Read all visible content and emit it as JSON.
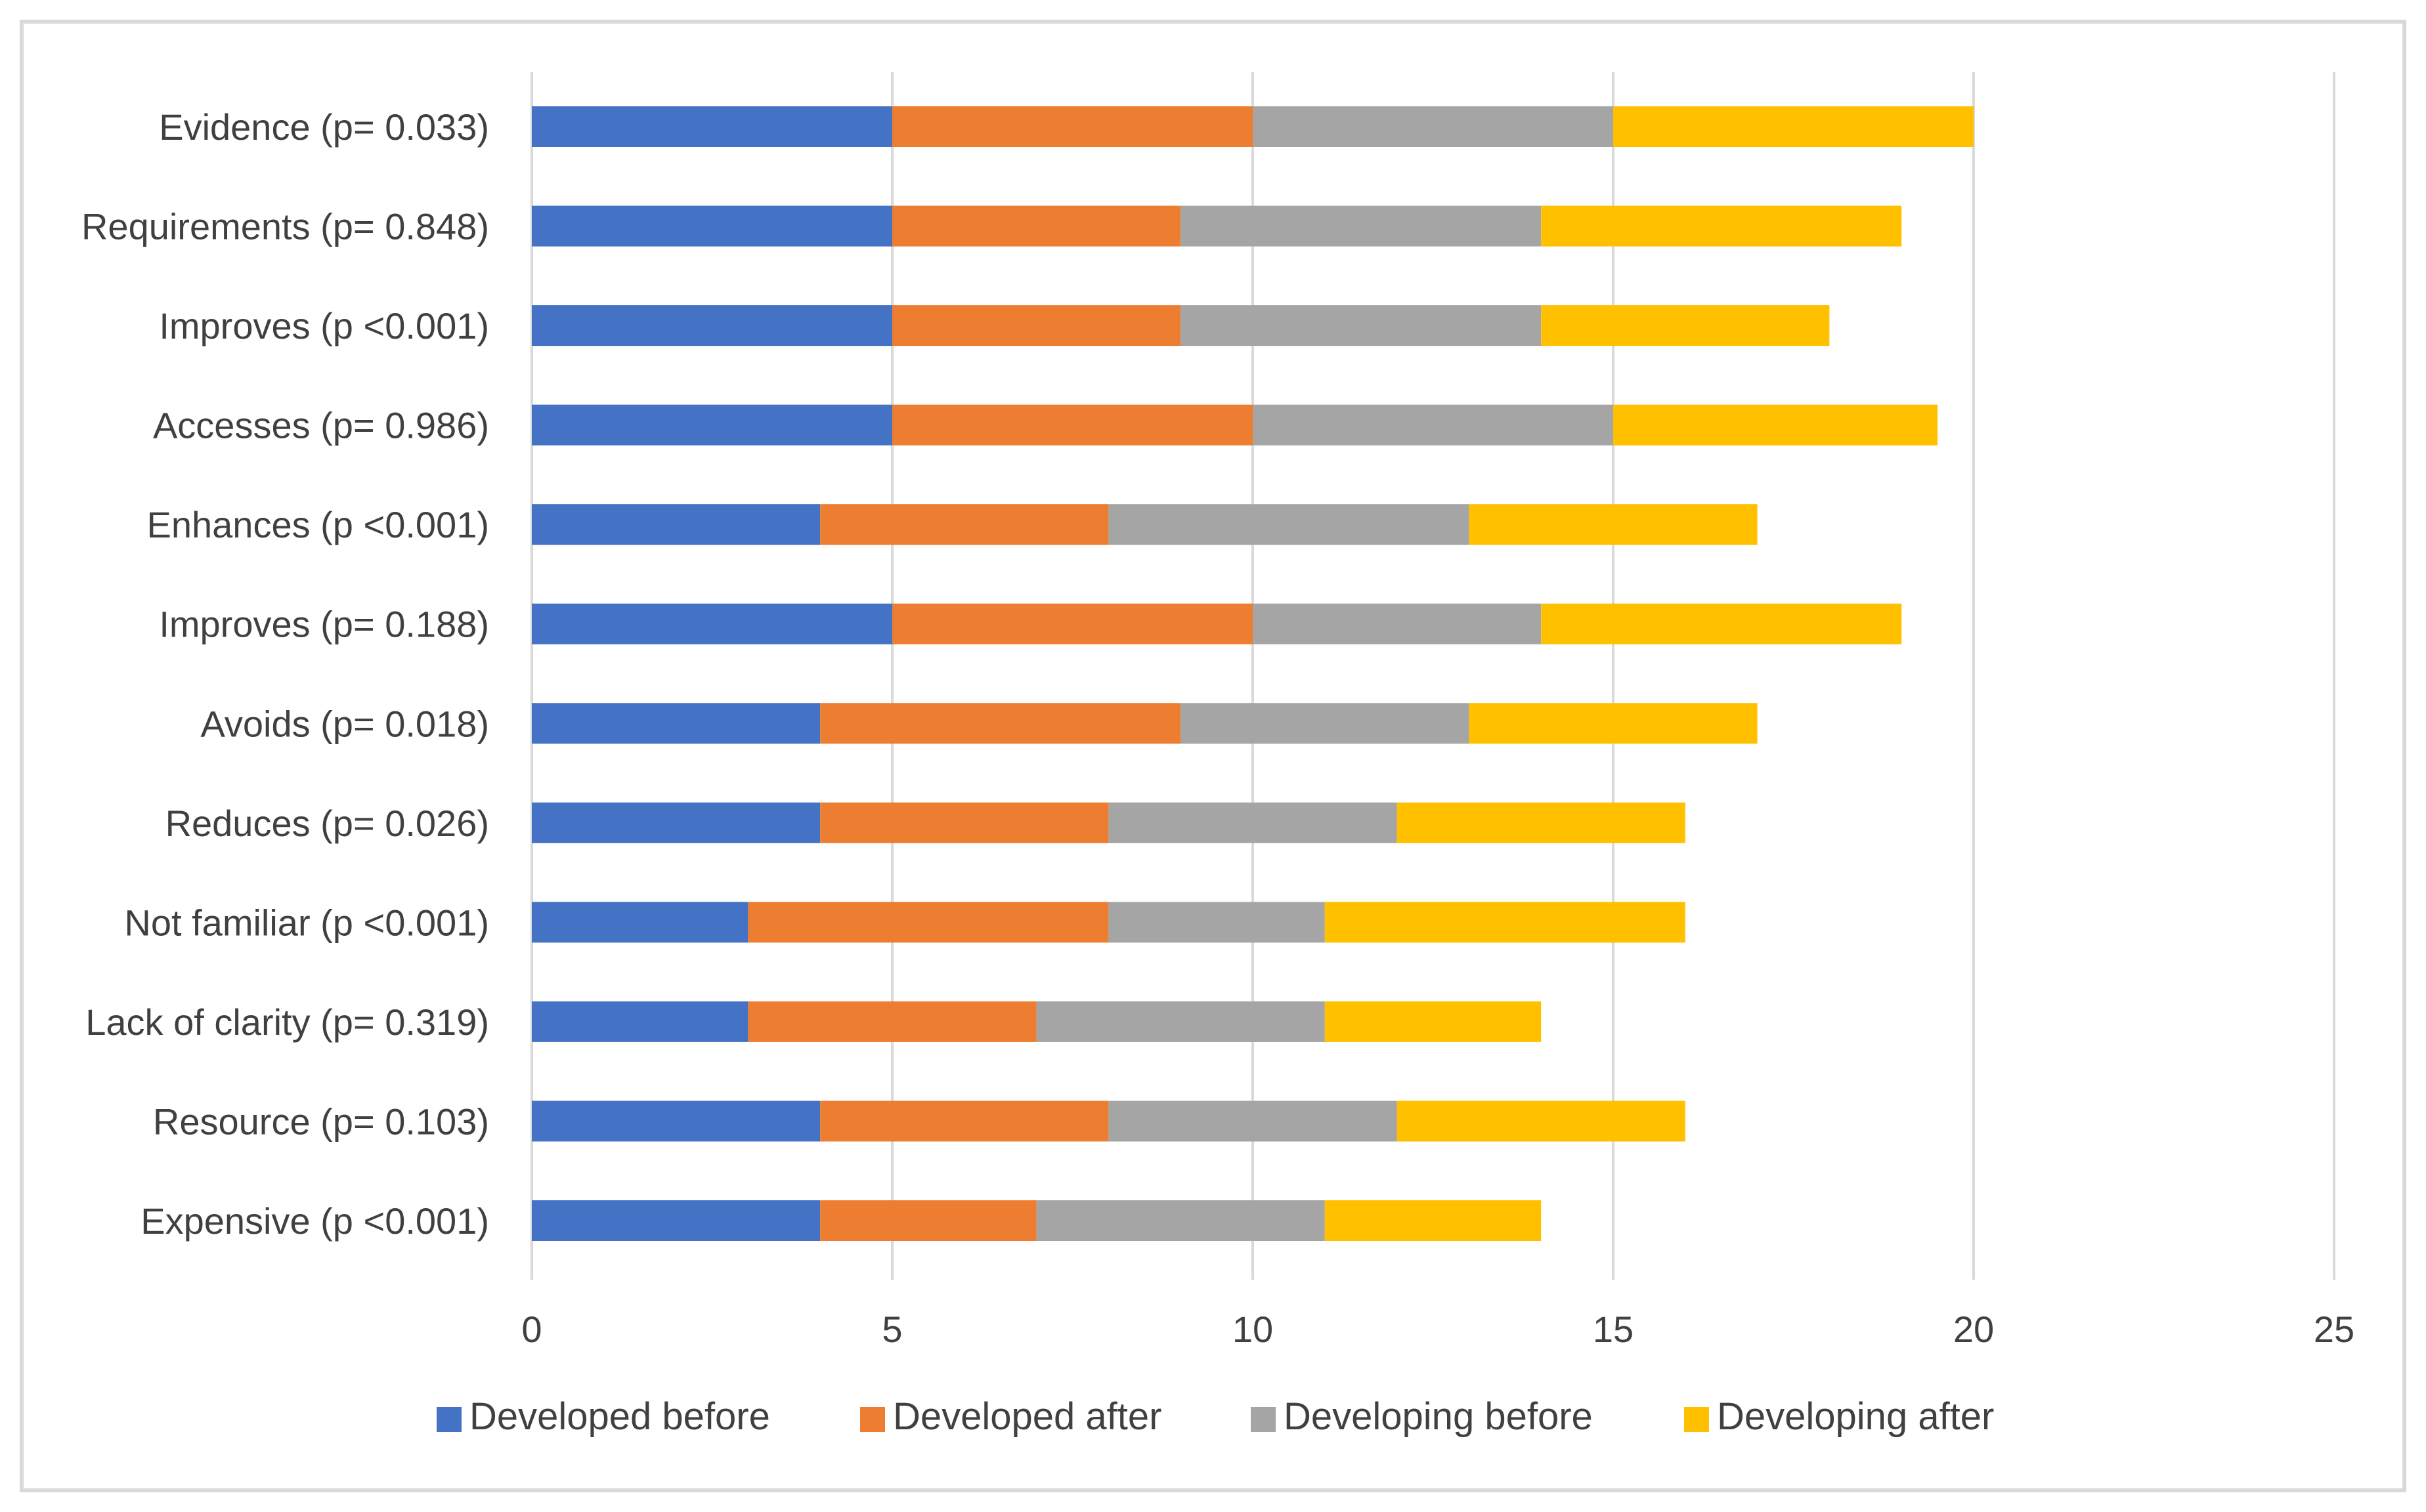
{
  "chart_data": {
    "type": "bar",
    "orientation": "horizontal",
    "stacked": true,
    "title": "",
    "xlabel": "",
    "ylabel": "",
    "xlim": [
      0,
      25
    ],
    "x_ticks": [
      0,
      5,
      10,
      15,
      20,
      25
    ],
    "grid": "vertical",
    "legend_position": "bottom",
    "categories": [
      "Evidence (p= 0.033)",
      "Requirements (p= 0.848)",
      "Improves (p <0.001)",
      "Accesses (p= 0.986)",
      "Enhances (p <0.001)",
      "Improves (p= 0.188)",
      "Avoids (p= 0.018)",
      "Reduces (p= 0.026)",
      "Not familiar (p <0.001)",
      "Lack of clarity (p= 0.319)",
      "Resource (p= 0.103)",
      "Expensive (p <0.001)"
    ],
    "series": [
      {
        "name": "Developed before",
        "color": "#4472c4",
        "values": [
          5,
          5,
          5,
          5,
          4,
          5,
          4,
          4,
          3,
          3,
          4,
          4
        ]
      },
      {
        "name": "Developed after",
        "color": "#ed7d31",
        "values": [
          5,
          4,
          4,
          5,
          4,
          5,
          5,
          4,
          5,
          4,
          4,
          3
        ]
      },
      {
        "name": "Developing before",
        "color": "#a5a5a5",
        "values": [
          5,
          5,
          5,
          5,
          5,
          4,
          4,
          4,
          3,
          4,
          4,
          4
        ]
      },
      {
        "name": "Developing after",
        "color": "#ffc000",
        "values": [
          5,
          5,
          4,
          4.5,
          4,
          5,
          4,
          4,
          5,
          3,
          4,
          3
        ]
      }
    ]
  }
}
